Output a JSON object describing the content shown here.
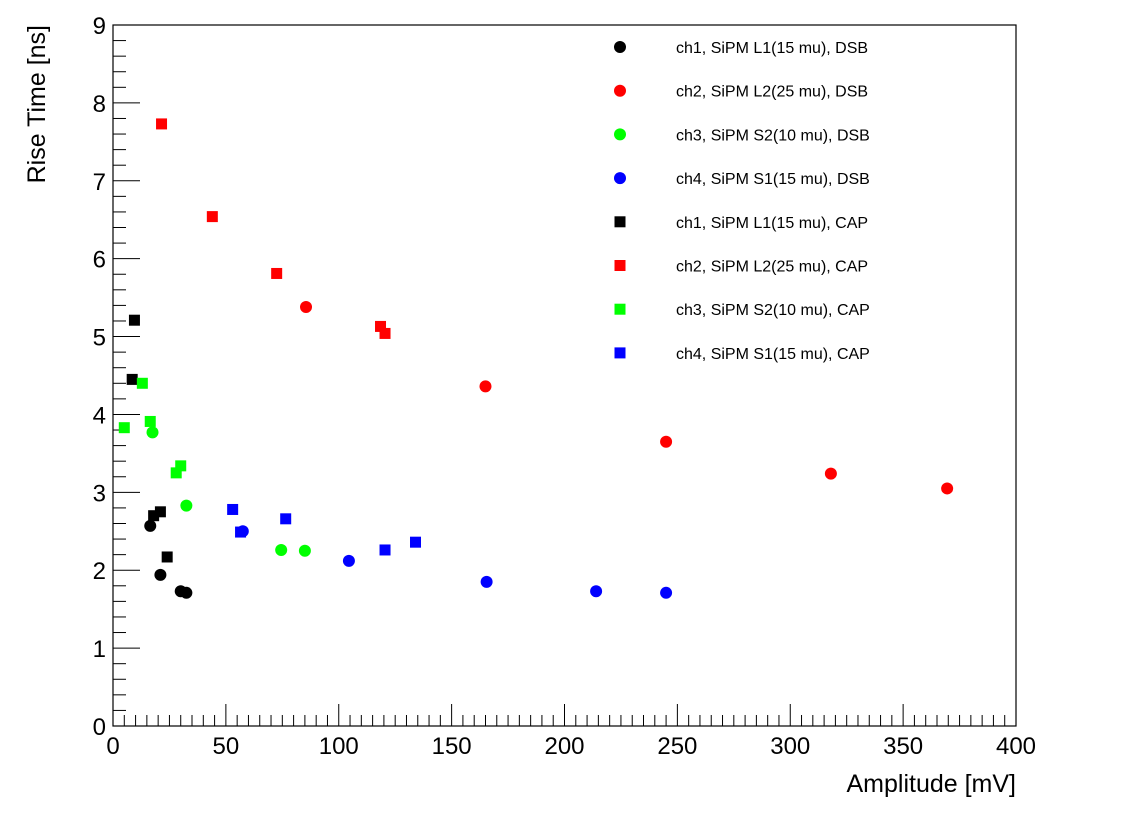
{
  "chart_data": {
    "type": "scatter",
    "title": "",
    "xlabel": "Amplitude [mV]",
    "ylabel": "Rise Time [ns]",
    "xlim": [
      0,
      400
    ],
    "ylim": [
      0,
      9
    ],
    "x_ticks": [
      "0",
      "50",
      "100",
      "150",
      "200",
      "250",
      "300",
      "350",
      "400"
    ],
    "y_ticks": [
      "0",
      "1",
      "2",
      "3",
      "4",
      "5",
      "6",
      "7",
      "8",
      "9"
    ],
    "grid": false,
    "legend_position": "top-right",
    "series": [
      {
        "name": "ch1, SiPM L1(15 mu), DSB",
        "color": "#000000",
        "marker": "circle",
        "points": [
          [
            16.5,
            2.57
          ],
          [
            21,
            1.94
          ],
          [
            30,
            1.73
          ],
          [
            32.5,
            1.71
          ]
        ]
      },
      {
        "name": "ch2, SiPM L2(25 mu), DSB",
        "color": "#ff0000",
        "marker": "circle",
        "points": [
          [
            85.5,
            5.38
          ],
          [
            165,
            4.36
          ],
          [
            245,
            3.65
          ],
          [
            318,
            3.24
          ],
          [
            369.5,
            3.05
          ]
        ]
      },
      {
        "name": "ch3, SiPM S2(10 mu), DSB",
        "color": "#00ff00",
        "marker": "circle",
        "points": [
          [
            17.5,
            3.77
          ],
          [
            32.5,
            2.83
          ],
          [
            74.5,
            2.26
          ],
          [
            85,
            2.25
          ]
        ]
      },
      {
        "name": "ch4, SiPM S1(15 mu), DSB",
        "color": "#0000ff",
        "marker": "circle",
        "points": [
          [
            57.5,
            2.5
          ],
          [
            104.5,
            2.12
          ],
          [
            165.5,
            1.85
          ],
          [
            214,
            1.73
          ],
          [
            245,
            1.71
          ]
        ]
      },
      {
        "name": "ch1, SiPM L1(15 mu), CAP",
        "color": "#000000",
        "marker": "square",
        "points": [
          [
            9.5,
            5.21
          ],
          [
            8.5,
            4.45
          ],
          [
            18,
            2.7
          ],
          [
            21,
            2.75
          ],
          [
            24,
            2.17
          ]
        ]
      },
      {
        "name": "ch2, SiPM L2(25 mu), CAP",
        "color": "#ff0000",
        "marker": "square",
        "points": [
          [
            21.5,
            7.73
          ],
          [
            44,
            6.54
          ],
          [
            72.5,
            5.81
          ],
          [
            118.5,
            5.13
          ],
          [
            120.5,
            5.04
          ]
        ]
      },
      {
        "name": "ch3, SiPM S2(10 mu), CAP",
        "color": "#00ff00",
        "marker": "square",
        "points": [
          [
            5,
            3.83
          ],
          [
            13,
            4.4
          ],
          [
            16.5,
            3.91
          ],
          [
            28,
            3.25
          ],
          [
            30,
            3.34
          ]
        ]
      },
      {
        "name": "ch4, SiPM S1(15 mu), CAP",
        "color": "#0000ff",
        "marker": "square",
        "points": [
          [
            53,
            2.78
          ],
          [
            56.5,
            2.49
          ],
          [
            76.5,
            2.66
          ],
          [
            120.5,
            2.26
          ],
          [
            134,
            2.36
          ]
        ]
      }
    ]
  }
}
